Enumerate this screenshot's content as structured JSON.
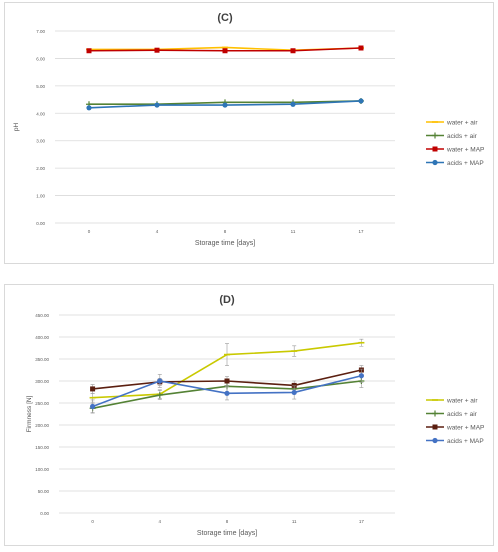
{
  "chart_data": [
    {
      "type": "line",
      "title": "(C)",
      "xlabel": "Storage time [days]",
      "ylabel": "pH",
      "categories": [
        "0",
        "4",
        "8",
        "11",
        "17"
      ],
      "ylim": [
        0,
        7
      ],
      "yticks": [
        "0.00",
        "1.00",
        "2.00",
        "3.00",
        "4.00",
        "5.00",
        "6.00",
        "7.00"
      ],
      "grid": true,
      "legend_position": "right",
      "series": [
        {
          "name": "water + air",
          "color": "#ffc000",
          "marker": "dash",
          "values": [
            6.33,
            6.33,
            6.4,
            6.3,
            6.38
          ]
        },
        {
          "name": "acids + air",
          "color": "#548235",
          "marker": "plus",
          "values": [
            4.33,
            4.33,
            4.4,
            4.4,
            4.45
          ]
        },
        {
          "name": "water + MAP",
          "color": "#c00000",
          "marker": "square",
          "values": [
            6.28,
            6.3,
            6.28,
            6.28,
            6.38
          ]
        },
        {
          "name": "acids + MAP",
          "color": "#2e75b6",
          "marker": "circle",
          "values": [
            4.2,
            4.3,
            4.3,
            4.33,
            4.45
          ]
        }
      ]
    },
    {
      "type": "line",
      "title": "(D)",
      "xlabel": "Storage time [days]",
      "ylabel": "Firmness [N]",
      "categories": [
        "0",
        "4",
        "8",
        "11",
        "17"
      ],
      "ylim": [
        0,
        450
      ],
      "yticks": [
        "0.00",
        "50.00",
        "100.00",
        "150.00",
        "200.00",
        "250.00",
        "300.00",
        "350.00",
        "400.00",
        "450.00"
      ],
      "grid": true,
      "legend_position": "right",
      "series": [
        {
          "name": "water + air",
          "color": "#c9c900",
          "marker": "dash",
          "values": [
            262,
            270,
            360,
            368,
            387
          ],
          "errors": [
            10,
            10,
            25,
            12,
            8
          ]
        },
        {
          "name": "acids + air",
          "color": "#548235",
          "marker": "plus",
          "values": [
            238,
            268,
            288,
            282,
            300
          ],
          "errors": [
            10,
            10,
            15,
            12,
            15
          ]
        },
        {
          "name": "water + MAP",
          "color": "#5b1f10",
          "marker": "square",
          "values": [
            282,
            298,
            300,
            290,
            325
          ],
          "errors": [
            10,
            8,
            10,
            10,
            10
          ]
        },
        {
          "name": "acids + MAP",
          "color": "#4472c4",
          "marker": "circle",
          "values": [
            242,
            300,
            272,
            274,
            312
          ],
          "errors": [
            15,
            15,
            15,
            15,
            15
          ]
        }
      ]
    }
  ]
}
